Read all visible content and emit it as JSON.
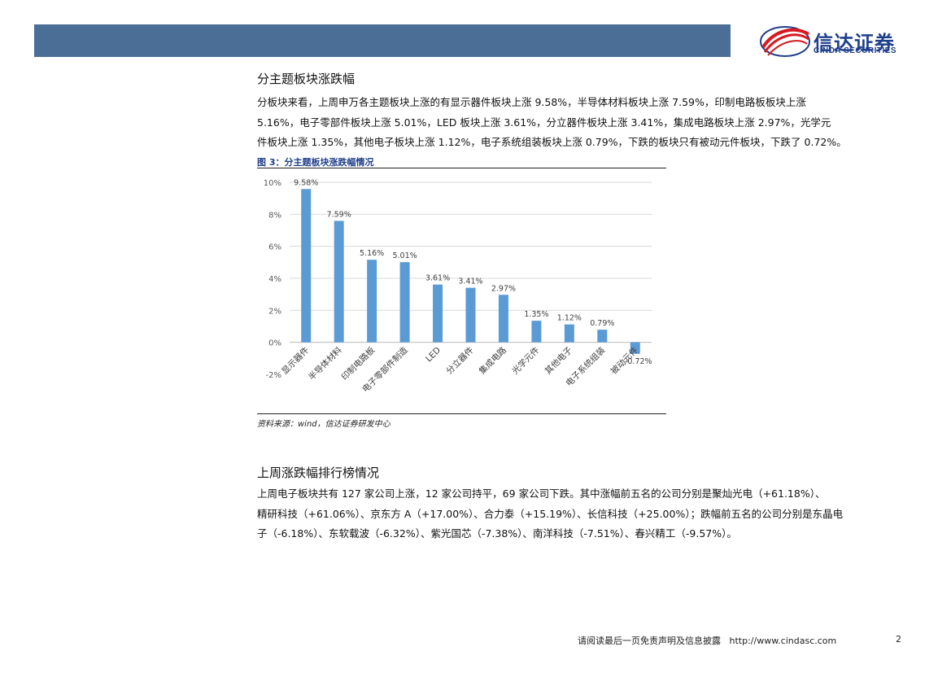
{
  "header": {
    "logo_cn": "信达证券",
    "logo_en": "CINDA SECURITIES",
    "logo_mark": "cinda-swoosh"
  },
  "section1": {
    "title": "分主题板块涨跌幅",
    "lines": [
      "分板块来看，上周申万各主题板块上涨的有显示器件板块上涨 9.58%，半导体材料板块上涨 7.59%，印制电路板板块上涨",
      "5.16%，电子零部件板块上涨 5.01%，LED 板块上涨 3.61%，分立器件板块上涨 3.41%，集成电路板块上涨 2.97%，光学元",
      "件板块上涨 1.35%，其他电子板块上涨 1.12%，电子系统组装板块上涨 0.79%，下跌的板块只有被动元件板块，下跌了 0.72%。"
    ]
  },
  "figure": {
    "caption": "图 3：分主题板块涨跌幅情况",
    "source": "资料来源：wind，信达证券研发中心"
  },
  "chart_data": {
    "type": "bar",
    "categories": [
      "显示器件",
      "半导体材料",
      "印制电路板",
      "电子零部件制造",
      "LED",
      "分立器件",
      "集成电路",
      "光学元件",
      "其他电子",
      "电子系统组装",
      "被动元件"
    ],
    "values": [
      9.58,
      7.59,
      5.16,
      5.01,
      3.61,
      3.41,
      2.97,
      1.35,
      1.12,
      0.79,
      -0.72
    ],
    "data_labels": [
      "9.58%",
      "7.59%",
      "5.16%",
      "5.01%",
      "3.61%",
      "3.41%",
      "2.97%",
      "1.35%",
      "1.12%",
      "0.79%",
      "-0.72%"
    ],
    "y_ticks": [
      -2,
      0,
      2,
      4,
      6,
      8,
      10
    ],
    "y_tick_labels": [
      "-2%",
      "0%",
      "2%",
      "4%",
      "6%",
      "8%",
      "10%"
    ],
    "ylim": [
      -2,
      10
    ],
    "title": "",
    "xlabel": "",
    "ylabel": "",
    "grid": true,
    "bar_color": "#5b9bd5"
  },
  "section2": {
    "title": "上周涨跌幅排行榜情况",
    "lines": [
      "上周电子板块共有 127 家公司上涨，12 家公司持平，69 家公司下跌。其中涨幅前五名的公司分别是聚灿光电（+61.18%）、",
      "精研科技（+61.06%）、京东方 A（+17.00%）、合力泰（+15.19%）、长信科技（+25.00%）；跌幅前五名的公司分别是东晶电",
      "子（-6.18%）、东软载波（-6.32%）、紫光国芯（-7.38%）、南洋科技（-7.51%）、春兴精工（-9.57%）。"
    ]
  },
  "footer": {
    "disclaimer": "请阅读最后一页免责声明及信息披露",
    "url": "http://www.cindasc.com",
    "page": "2"
  }
}
